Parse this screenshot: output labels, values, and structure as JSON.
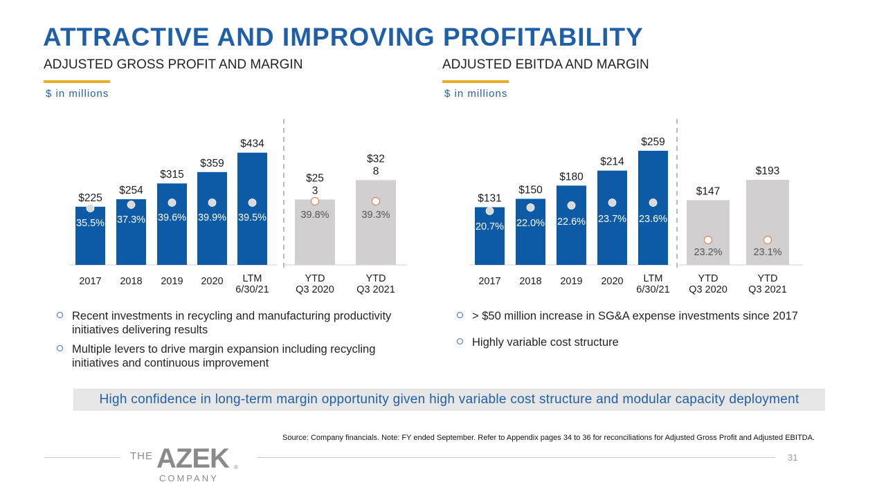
{
  "title": "ATTRACTIVE AND IMPROVING PROFITABILITY",
  "left": {
    "subtitle": "ADJUSTED GROSS PROFIT AND MARGIN",
    "units": "$ in millions",
    "bullets": [
      "Recent investments in recycling and manufacturing productivity initiatives delivering results",
      "Multiple levers to drive margin expansion including recycling initiatives and continuous improvement"
    ]
  },
  "right": {
    "subtitle": "ADJUSTED EBITDA AND MARGIN",
    "units": "$ in millions",
    "bullets": [
      "> $50 million increase in SG&A expense investments since 2017",
      "Highly variable cost structure"
    ]
  },
  "banner": "High confidence in long-term margin opportunity given high variable cost structure and modular capacity deployment",
  "source": "Source: Company financials.  Note: FY ended September. Refer to Appendix pages 34 to 36  for reconciliations for Adjusted Gross Profit and Adjusted EBITDA.",
  "page_number": "31",
  "logo": {
    "text_top": "THE",
    "text_main": "AZEK",
    "text_bottom": "COMPANY"
  },
  "colors": {
    "blue": "#0d5aa7",
    "gray_bar": "#d1cfcf",
    "gold": "#e8ad22",
    "marker_hollow": "#d9875a"
  },
  "chart_data": [
    {
      "type": "bar",
      "title": "ADJUSTED GROSS PROFIT AND MARGIN",
      "units": "$ in millions",
      "ylim": [
        0,
        460
      ],
      "categories": [
        [
          "2017"
        ],
        [
          "2018"
        ],
        [
          "2019"
        ],
        [
          "2020"
        ],
        [
          "LTM",
          "6/30/21"
        ],
        [
          "YTD",
          "Q3 2020"
        ],
        [
          "YTD",
          "Q3 2021"
        ]
      ],
      "values": [
        225,
        254,
        315,
        359,
        434,
        253,
        328
      ],
      "value_labels": [
        [
          "$225"
        ],
        [
          "$254"
        ],
        [
          "$315"
        ],
        [
          "$359"
        ],
        [
          "$434"
        ],
        [
          "$25",
          "3"
        ],
        [
          "$32",
          "8"
        ]
      ],
      "margins": [
        35.5,
        37.3,
        39.6,
        39.9,
        39.5,
        39.8,
        39.3
      ],
      "margin_labels": [
        "35.5%",
        "37.3%",
        "39.6%",
        "39.9%",
        "39.5%",
        "39.8%",
        "39.3%"
      ],
      "groups": [
        "annual",
        "annual",
        "annual",
        "annual",
        "annual",
        "ytd",
        "ytd"
      ]
    },
    {
      "type": "bar",
      "title": "ADJUSTED EBITDA AND MARGIN",
      "units": "$ in millions",
      "ylim": [
        0,
        270
      ],
      "categories": [
        [
          "2017"
        ],
        [
          "2018"
        ],
        [
          "2019"
        ],
        [
          "2020"
        ],
        [
          "LTM",
          "6/30/21"
        ],
        [
          "YTD",
          "Q3 2020"
        ],
        [
          "YTD",
          "Q3 2021"
        ]
      ],
      "values": [
        131,
        150,
        180,
        214,
        259,
        147,
        193
      ],
      "value_labels": [
        [
          "$131"
        ],
        [
          "$150"
        ],
        [
          "$180"
        ],
        [
          "$214"
        ],
        [
          "$259"
        ],
        [
          "$147"
        ],
        [
          "$193"
        ]
      ],
      "margins": [
        20.7,
        22.0,
        22.6,
        23.7,
        23.6,
        23.2,
        23.1
      ],
      "margin_labels": [
        "20.7%",
        "22.0%",
        "22.6%",
        "23.7%",
        "23.6%",
        "23.2%",
        "23.1%"
      ],
      "groups": [
        "annual",
        "annual",
        "annual",
        "annual",
        "annual",
        "ytd",
        "ytd"
      ]
    }
  ]
}
